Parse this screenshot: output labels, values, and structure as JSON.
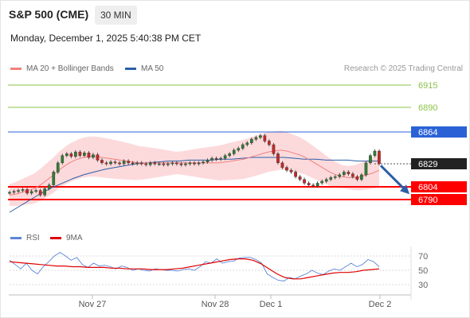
{
  "header": {
    "symbol": "S&P 500 (CME)",
    "interval": "30 MIN",
    "datetime": "Monday, December 1, 2025 5:40:38 PM CET"
  },
  "legend": {
    "ma20_label": "MA 20 + Bollinger Bands",
    "ma50_label": "MA 50",
    "credit": "Research © 2025 Trading Central",
    "rsi_label": "RSI",
    "rsi_ma_label": "9MA"
  },
  "colors": {
    "ma20": "#f08080",
    "ma50": "#2b5ea8",
    "bollinger_fill": "#fbd3d6",
    "candle_up": "#2e7d32",
    "candle_down": "#c62828",
    "resistance_green": "#8bc34a",
    "pivot_blue": "#2a62d6",
    "support_red": "#ff0000",
    "current_price_bg": "#222222",
    "rsi_line": "#5b86d8",
    "rsi_ma_line": "#e00000",
    "arrow": "#2b5ea8"
  },
  "chart_data": [
    {
      "type": "candlestick",
      "title": "",
      "x_labels": [
        "Nov 27",
        "Nov 28",
        "Dec 1",
        "Dec 2"
      ],
      "ylim": [
        6765,
        6925
      ],
      "grid": false,
      "legend_placement": "top-left",
      "levels": [
        {
          "value": 6915,
          "label": "6915",
          "kind": "resistance",
          "color": "#8bc34a"
        },
        {
          "value": 6890,
          "label": "6890",
          "kind": "resistance",
          "color": "#8bc34a"
        },
        {
          "value": 6864,
          "label": "6864",
          "kind": "pivot",
          "color": "#2a62d6"
        },
        {
          "value": 6829,
          "label": "6829",
          "kind": "current-price",
          "color": "#222222"
        },
        {
          "value": 6804,
          "label": "6804",
          "kind": "support",
          "color": "#ff0000"
        },
        {
          "value": 6790,
          "label": "6790",
          "kind": "support",
          "color": "#ff0000"
        }
      ],
      "close_series": [
        6798,
        6799,
        6800,
        6801,
        6797,
        6799,
        6800,
        6795,
        6802,
        6806,
        6820,
        6830,
        6838,
        6840,
        6837,
        6842,
        6838,
        6841,
        6836,
        6839,
        6833,
        6830,
        6829,
        6831,
        6830,
        6829,
        6832,
        6830,
        6829,
        6830,
        6829,
        6828,
        6830,
        6829,
        6829,
        6828,
        6829,
        6830,
        6829,
        6828,
        6829,
        6830,
        6829,
        6830,
        6831,
        6833,
        6835,
        6834,
        6835,
        6838,
        6840,
        6844,
        6846,
        6850,
        6852,
        6856,
        6858,
        6860,
        6854,
        6850,
        6840,
        6830,
        6825,
        6822,
        6820,
        6815,
        6812,
        6808,
        6806,
        6805,
        6808,
        6810,
        6812,
        6814,
        6815,
        6817,
        6820,
        6818,
        6815,
        6812,
        6817,
        6830,
        6838,
        6843,
        6829
      ],
      "ma20_series": [
        6795,
        6796,
        6798,
        6800,
        6802,
        6806,
        6811,
        6816,
        6822,
        6827,
        6831,
        6834,
        6836,
        6837,
        6837,
        6836,
        6835,
        6834,
        6833,
        6832,
        6831,
        6830,
        6830,
        6830,
        6830,
        6830,
        6830,
        6830,
        6830,
        6830,
        6830,
        6830,
        6830,
        6830,
        6830,
        6831,
        6832,
        6833,
        6834,
        6836,
        6838,
        6840,
        6842,
        6843,
        6844,
        6843,
        6841,
        6839,
        6836,
        6832,
        6828,
        6824,
        6820,
        6817,
        6815,
        6814,
        6814,
        6815,
        6817,
        6819,
        6822
      ],
      "ma50_series": [
        6776,
        6783,
        6790,
        6797,
        6803,
        6808,
        6813,
        6817,
        6820,
        6823,
        6825,
        6827,
        6829,
        6830,
        6831,
        6832,
        6832,
        6833,
        6833,
        6833,
        6834,
        6834,
        6835,
        6836,
        6836,
        6836,
        6836,
        6835,
        6834,
        6834,
        6833,
        6833,
        6833,
        6832,
        6832,
        6832
      ],
      "forecast_arrow": {
        "from": 6827,
        "to": 6795,
        "direction": "down"
      }
    },
    {
      "type": "line",
      "title": "",
      "series": [
        {
          "name": "RSI",
          "values": [
            64,
            58,
            52,
            60,
            50,
            45,
            55,
            62,
            70,
            75,
            70,
            64,
            68,
            58,
            54,
            60,
            56,
            57,
            55,
            52,
            56,
            54,
            50,
            52,
            50,
            49,
            52,
            51,
            50,
            50,
            49,
            51,
            52,
            50,
            55,
            62,
            60,
            66,
            60,
            62,
            63,
            67,
            68,
            68,
            65,
            60,
            45,
            40,
            36,
            35,
            40,
            38,
            42,
            45,
            50,
            46,
            44,
            49,
            52,
            50,
            55,
            60,
            55,
            58,
            65,
            62,
            55
          ]
        },
        {
          "name": "9MA",
          "values": [
            62,
            61,
            60,
            59,
            58,
            57,
            56,
            56,
            55,
            55,
            54,
            54,
            54,
            53,
            53,
            52,
            52,
            52,
            51,
            51,
            51,
            52,
            53,
            55,
            57,
            59,
            61,
            63,
            65,
            66,
            66,
            64,
            59,
            52,
            45,
            40,
            38,
            38,
            40,
            42,
            44,
            46,
            47,
            47,
            48,
            50,
            51,
            52
          ]
        }
      ],
      "ylim": [
        25,
        75
      ],
      "y_ticks": [
        70,
        50,
        30
      ],
      "legend_placement": "top-left"
    }
  ]
}
